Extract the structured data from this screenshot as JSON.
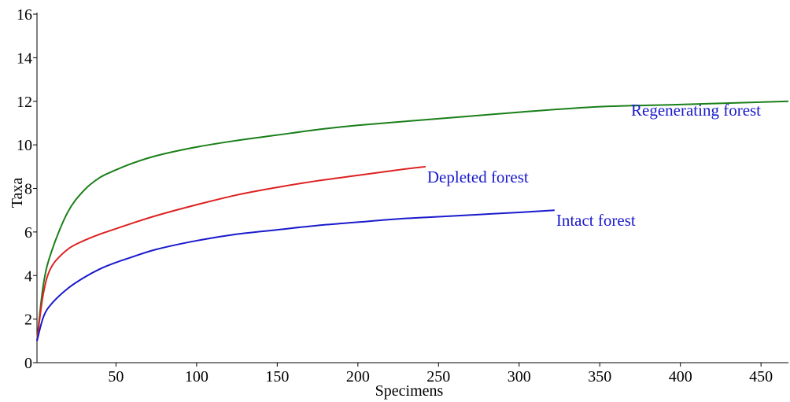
{
  "chart_data": {
    "type": "line",
    "title": "",
    "xlabel": "Specimens",
    "ylabel": "Taxa",
    "xlim": [
      1,
      467
    ],
    "ylim": [
      0,
      16
    ],
    "x_ticks": [
      50,
      100,
      150,
      200,
      250,
      300,
      350,
      400,
      450
    ],
    "y_ticks": [
      0,
      2,
      4,
      6,
      8,
      10,
      12,
      14,
      16
    ],
    "grid": false,
    "legend": "none",
    "series": [
      {
        "name": "Regenerating forest",
        "color": "#1a7f1a",
        "label_color": "#1a1acc",
        "x": [
          1,
          5,
          10,
          20,
          30,
          40,
          50,
          60,
          75,
          100,
          125,
          150,
          175,
          200,
          250,
          300,
          350,
          400,
          467
        ],
        "y": [
          1.0,
          3.6,
          5.1,
          6.9,
          7.9,
          8.5,
          8.85,
          9.15,
          9.5,
          9.9,
          10.2,
          10.45,
          10.7,
          10.9,
          11.2,
          11.5,
          11.75,
          11.85,
          12.0
        ]
      },
      {
        "name": "Depleted forest",
        "color": "#dd2222",
        "label_color": "#1a1acc",
        "x": [
          1,
          5,
          10,
          20,
          30,
          40,
          50,
          60,
          75,
          100,
          125,
          150,
          175,
          200,
          225,
          242
        ],
        "y": [
          1.0,
          3.2,
          4.4,
          5.2,
          5.6,
          5.9,
          6.15,
          6.4,
          6.75,
          7.25,
          7.7,
          8.05,
          8.35,
          8.6,
          8.85,
          9.0
        ]
      },
      {
        "name": "Intact forest",
        "color": "#1a1acc",
        "label_color": "#1a1acc",
        "x": [
          1,
          5,
          10,
          20,
          30,
          40,
          50,
          60,
          75,
          100,
          125,
          150,
          175,
          200,
          225,
          250,
          275,
          300,
          322
        ],
        "y": [
          1.0,
          2.1,
          2.7,
          3.4,
          3.9,
          4.3,
          4.6,
          4.85,
          5.2,
          5.6,
          5.9,
          6.1,
          6.3,
          6.45,
          6.6,
          6.7,
          6.8,
          6.9,
          7.0
        ]
      }
    ]
  }
}
